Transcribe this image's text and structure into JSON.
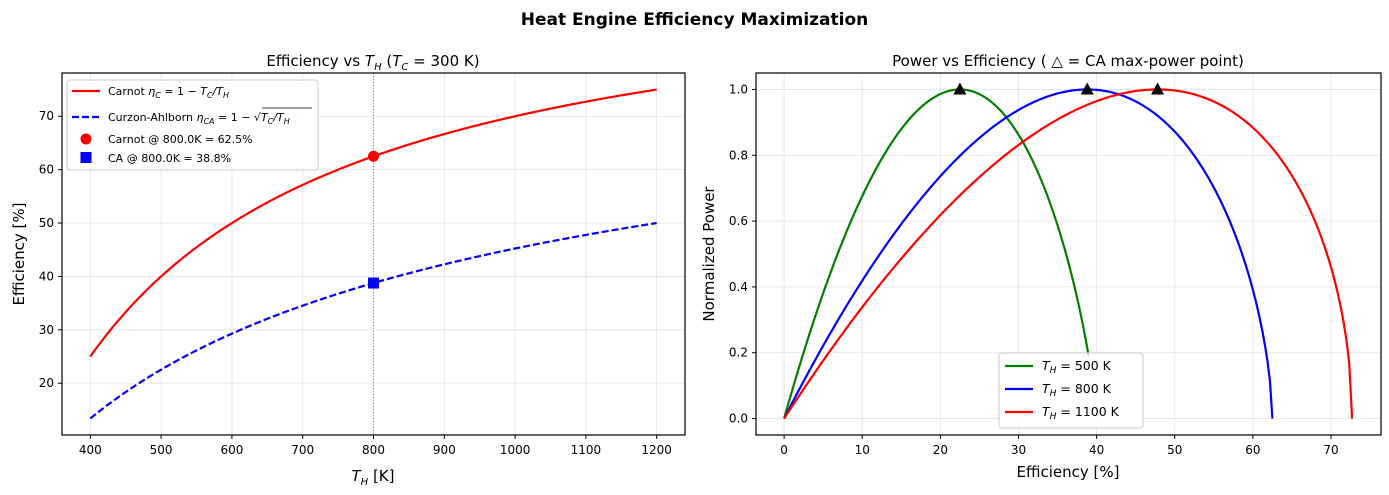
{
  "suptitle": "Heat Engine Efficiency Maximization",
  "chart_data": [
    {
      "type": "line",
      "title": "Efficiency vs T_H (T_C = 300 K)",
      "title_parts": {
        "pre": "Efficiency vs ",
        "var": "T",
        "sub": "H",
        "mid": " (",
        "var2": "T",
        "sub2": "C",
        "post": " = 300 K)"
      },
      "xlabel": "T_H [K]",
      "xlabel_parts": {
        "var": "T",
        "sub": "H",
        "post": " [K]"
      },
      "ylabel": "Efficiency [%]",
      "xlim": [
        360,
        1240
      ],
      "ylim": [
        10.3,
        78.1
      ],
      "xticks": [
        400,
        500,
        600,
        700,
        800,
        900,
        1000,
        1100,
        1200
      ],
      "yticks": [
        20,
        30,
        40,
        50,
        60,
        70
      ],
      "grid": true,
      "T_C": 300,
      "T_H_range": [
        400,
        1200
      ],
      "vline_x": 800,
      "series": [
        {
          "name": "Carnot",
          "legend": "Carnot η_C = 1 − T_C/T_H",
          "formula": "carnot",
          "color": "#ff0000",
          "style": "solid"
        },
        {
          "name": "Curzon-Ahlborn",
          "legend": "Curzon-Ahlborn η_CA = 1 − √(T_C/T_H)",
          "formula": "ca",
          "color": "#0000ff",
          "style": "dashed"
        }
      ],
      "points": [
        {
          "name": "Carnot @ 800.0K = 62.5%",
          "x": 800,
          "y": 62.5,
          "marker": "circle",
          "color": "#ff0000"
        },
        {
          "name": "CA @ 800.0K = 38.8%",
          "x": 800,
          "y": 38.76,
          "marker": "square",
          "color": "#0000ff"
        }
      ],
      "legend_placement": "upper-left",
      "legend_labels": {
        "carnot_pre": "Carnot ",
        "ca_pre": "Curzon-Ahlborn ",
        "pt1": "Carnot @ 800.0K = 62.5%",
        "pt2": "CA @ 800.0K = 38.8%"
      },
      "sample_values": {
        "T_H": [
          400,
          500,
          600,
          700,
          800,
          900,
          1000,
          1100,
          1200
        ],
        "carnot": [
          25.0,
          40.0,
          50.0,
          57.1,
          62.5,
          66.7,
          70.0,
          72.7,
          75.0
        ],
        "ca": [
          13.4,
          22.5,
          29.3,
          34.5,
          38.8,
          42.3,
          45.2,
          47.8,
          50.0
        ]
      }
    },
    {
      "type": "line",
      "title": "Power vs Efficiency ( △ = CA max-power point)",
      "xlabel": "Efficiency [%]",
      "ylabel": "Normalized Power",
      "xlim": [
        -3.6,
        76.4
      ],
      "ylim": [
        -0.05,
        1.05
      ],
      "xticks": [
        0,
        10,
        20,
        30,
        40,
        50,
        60,
        70
      ],
      "yticks": [
        0.0,
        0.2,
        0.4,
        0.6,
        0.8,
        1.0
      ],
      "ytick_labels": [
        "0.0",
        "0.2",
        "0.4",
        "0.6",
        "0.8",
        "1.0"
      ],
      "grid": true,
      "legend_placement": "lower-center",
      "series": [
        {
          "name": "T_H = 500 K",
          "label_post": " = 500 K",
          "T_H": 500,
          "eta_carnot": 40.0,
          "eta_ca": 22.5,
          "end_power": 0.19,
          "color": "#008000"
        },
        {
          "name": "T_H = 800 K",
          "label_post": " = 800 K",
          "T_H": 800,
          "eta_carnot": 62.5,
          "eta_ca": 38.8,
          "end_power": 0.01,
          "color": "#0000ff"
        },
        {
          "name": "T_H = 1100 K",
          "label_post": " = 1100 K",
          "T_H": 1100,
          "eta_carnot": 72.7,
          "eta_ca": 47.8,
          "end_power": 0.01,
          "color": "#ff0000"
        }
      ],
      "max_points": [
        {
          "x": 22.5,
          "y": 1.0
        },
        {
          "x": 38.8,
          "y": 1.0
        },
        {
          "x": 47.8,
          "y": 1.0
        }
      ]
    }
  ]
}
